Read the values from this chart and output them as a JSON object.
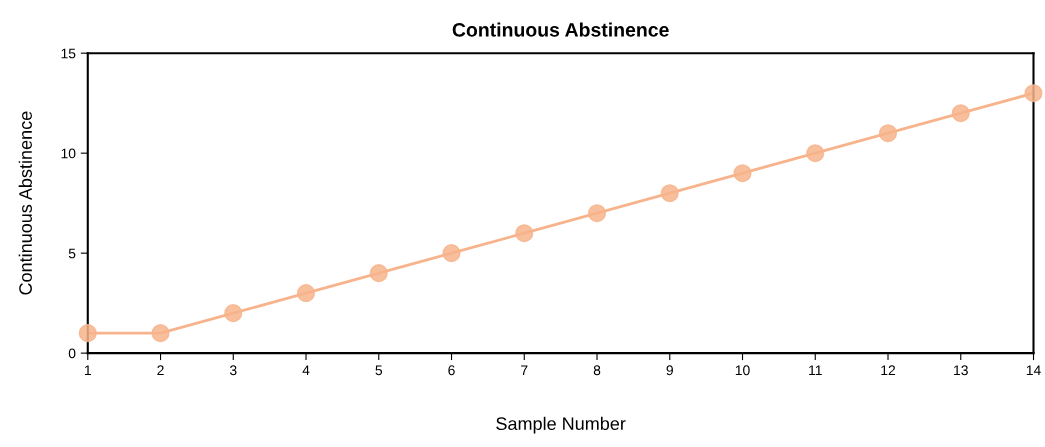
{
  "chart_data": {
    "type": "line",
    "title": "Continuous Abstinence",
    "xlabel": "Sample Number",
    "ylabel": "Continuous Abstinence",
    "x": [
      1,
      2,
      3,
      4,
      5,
      6,
      7,
      8,
      9,
      10,
      11,
      12,
      13,
      14
    ],
    "series": [
      {
        "color": "#f7b48c",
        "values": [
          1,
          1,
          2,
          3,
          4,
          5,
          6,
          7,
          8,
          9,
          10,
          11,
          12,
          13
        ]
      }
    ],
    "xlim": [
      1,
      14
    ],
    "xticks": [
      1,
      2,
      3,
      4,
      5,
      6,
      7,
      8,
      9,
      10,
      11,
      12,
      13,
      14
    ],
    "ylim": [
      0,
      15
    ],
    "yticks": [
      0,
      5,
      10,
      15
    ],
    "grid": false,
    "legend": false,
    "marker": "circle",
    "line_style": "solid"
  }
}
